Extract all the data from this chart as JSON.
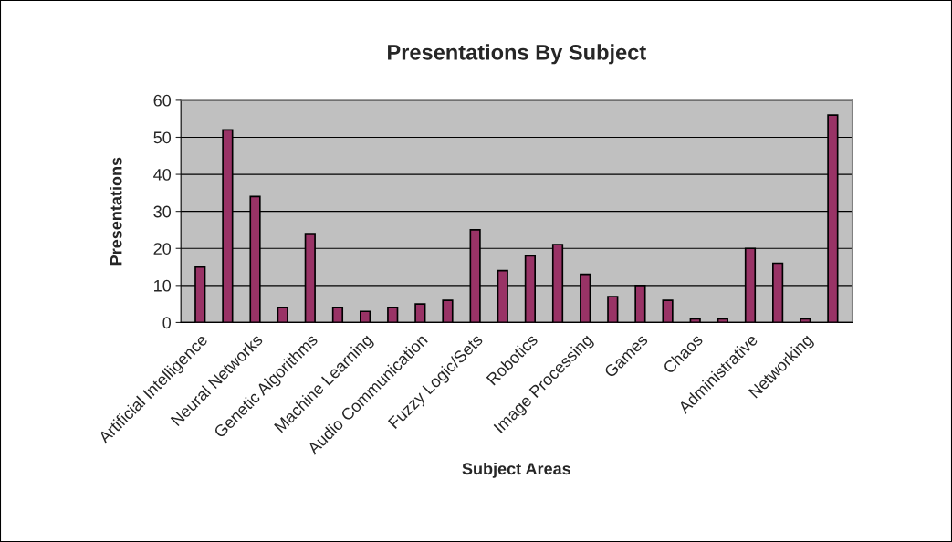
{
  "chart_data": {
    "type": "bar",
    "title": "Presentations By Subject",
    "xlabel": "Subject Areas",
    "ylabel": "Presentations",
    "categories": [
      "Artificial Intelligence",
      null,
      "Neural Networks",
      null,
      "Genetic Algorithms",
      null,
      "Machine Learning",
      null,
      "Audio Communication",
      null,
      "Fuzzy Logic/Sets",
      null,
      "Robotics",
      null,
      "Image Processing",
      null,
      "Games",
      null,
      "Chaos",
      null,
      "Administrative",
      null,
      "Networking",
      null
    ],
    "values": [
      15,
      52,
      34,
      4,
      24,
      4,
      3,
      4,
      5,
      6,
      25,
      14,
      18,
      21,
      13,
      7,
      10,
      6,
      1,
      1,
      20,
      16,
      1,
      56
    ],
    "color": "#993366",
    "ylim": [
      0,
      60
    ],
    "yticks": [
      0,
      10,
      20,
      30,
      40,
      50,
      60
    ],
    "grid": "y",
    "legend": false
  }
}
